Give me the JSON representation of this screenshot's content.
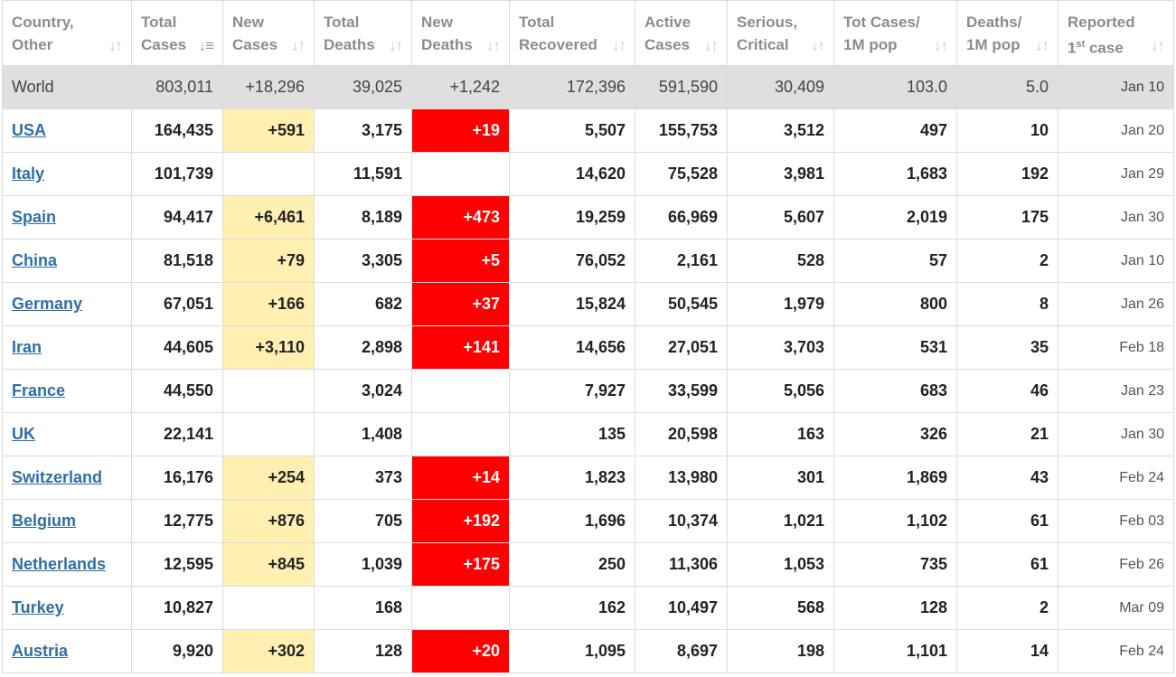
{
  "colors": {
    "new_cases_bg": "#fff0b2",
    "new_deaths_bg": "#ff0000",
    "link": "#2e6fa7",
    "world_row_bg": "#dfdfdf"
  },
  "sort_icon": "sort-arrows-icon",
  "headers": [
    {
      "l1": "Country,",
      "l2": "Other"
    },
    {
      "l1": "Total",
      "l2": "Cases"
    },
    {
      "l1": "New",
      "l2": "Cases"
    },
    {
      "l1": "Total",
      "l2": "Deaths"
    },
    {
      "l1": "New",
      "l2": "Deaths"
    },
    {
      "l1": "Total",
      "l2": "Recovered"
    },
    {
      "l1": "Active",
      "l2": "Cases"
    },
    {
      "l1": "Serious,",
      "l2": "Critical"
    },
    {
      "l1": "Tot Cases/",
      "l2": "1M pop"
    },
    {
      "l1": "Deaths/",
      "l2": "1M pop"
    },
    {
      "l1": "Reported",
      "l2a": "1",
      "l2sup": "st",
      "l2b": " case"
    }
  ],
  "world": {
    "country": "World",
    "total_cases": "803,011",
    "new_cases": "+18,296",
    "total_deaths": "39,025",
    "new_deaths": "+1,242",
    "total_recovered": "172,396",
    "active_cases": "591,590",
    "serious": "30,409",
    "cases_per_1m": "103.0",
    "deaths_per_1m": "5.0",
    "first_case": "Jan 10"
  },
  "rows": [
    {
      "country": "USA",
      "total_cases": "164,435",
      "new_cases": "+591",
      "total_deaths": "3,175",
      "new_deaths": "+19",
      "total_recovered": "5,507",
      "active_cases": "155,753",
      "serious": "3,512",
      "cases_per_1m": "497",
      "deaths_per_1m": "10",
      "first_case": "Jan 20"
    },
    {
      "country": "Italy",
      "total_cases": "101,739",
      "new_cases": "",
      "total_deaths": "11,591",
      "new_deaths": "",
      "total_recovered": "14,620",
      "active_cases": "75,528",
      "serious": "3,981",
      "cases_per_1m": "1,683",
      "deaths_per_1m": "192",
      "first_case": "Jan 29"
    },
    {
      "country": "Spain",
      "total_cases": "94,417",
      "new_cases": "+6,461",
      "total_deaths": "8,189",
      "new_deaths": "+473",
      "total_recovered": "19,259",
      "active_cases": "66,969",
      "serious": "5,607",
      "cases_per_1m": "2,019",
      "deaths_per_1m": "175",
      "first_case": "Jan 30"
    },
    {
      "country": "China",
      "total_cases": "81,518",
      "new_cases": "+79",
      "total_deaths": "3,305",
      "new_deaths": "+5",
      "total_recovered": "76,052",
      "active_cases": "2,161",
      "serious": "528",
      "cases_per_1m": "57",
      "deaths_per_1m": "2",
      "first_case": "Jan 10"
    },
    {
      "country": "Germany",
      "total_cases": "67,051",
      "new_cases": "+166",
      "total_deaths": "682",
      "new_deaths": "+37",
      "total_recovered": "15,824",
      "active_cases": "50,545",
      "serious": "1,979",
      "cases_per_1m": "800",
      "deaths_per_1m": "8",
      "first_case": "Jan 26"
    },
    {
      "country": "Iran",
      "total_cases": "44,605",
      "new_cases": "+3,110",
      "total_deaths": "2,898",
      "new_deaths": "+141",
      "total_recovered": "14,656",
      "active_cases": "27,051",
      "serious": "3,703",
      "cases_per_1m": "531",
      "deaths_per_1m": "35",
      "first_case": "Feb 18"
    },
    {
      "country": "France",
      "total_cases": "44,550",
      "new_cases": "",
      "total_deaths": "3,024",
      "new_deaths": "",
      "total_recovered": "7,927",
      "active_cases": "33,599",
      "serious": "5,056",
      "cases_per_1m": "683",
      "deaths_per_1m": "46",
      "first_case": "Jan 23"
    },
    {
      "country": "UK",
      "total_cases": "22,141",
      "new_cases": "",
      "total_deaths": "1,408",
      "new_deaths": "",
      "total_recovered": "135",
      "active_cases": "20,598",
      "serious": "163",
      "cases_per_1m": "326",
      "deaths_per_1m": "21",
      "first_case": "Jan 30"
    },
    {
      "country": "Switzerland",
      "total_cases": "16,176",
      "new_cases": "+254",
      "total_deaths": "373",
      "new_deaths": "+14",
      "total_recovered": "1,823",
      "active_cases": "13,980",
      "serious": "301",
      "cases_per_1m": "1,869",
      "deaths_per_1m": "43",
      "first_case": "Feb 24"
    },
    {
      "country": "Belgium",
      "total_cases": "12,775",
      "new_cases": "+876",
      "total_deaths": "705",
      "new_deaths": "+192",
      "total_recovered": "1,696",
      "active_cases": "10,374",
      "serious": "1,021",
      "cases_per_1m": "1,102",
      "deaths_per_1m": "61",
      "first_case": "Feb 03"
    },
    {
      "country": "Netherlands",
      "total_cases": "12,595",
      "new_cases": "+845",
      "total_deaths": "1,039",
      "new_deaths": "+175",
      "total_recovered": "250",
      "active_cases": "11,306",
      "serious": "1,053",
      "cases_per_1m": "735",
      "deaths_per_1m": "61",
      "first_case": "Feb 26"
    },
    {
      "country": "Turkey",
      "total_cases": "10,827",
      "new_cases": "",
      "total_deaths": "168",
      "new_deaths": "",
      "total_recovered": "162",
      "active_cases": "10,497",
      "serious": "568",
      "cases_per_1m": "128",
      "deaths_per_1m": "2",
      "first_case": "Mar 09"
    },
    {
      "country": "Austria",
      "total_cases": "9,920",
      "new_cases": "+302",
      "total_deaths": "128",
      "new_deaths": "+20",
      "total_recovered": "1,095",
      "active_cases": "8,697",
      "serious": "198",
      "cases_per_1m": "1,101",
      "deaths_per_1m": "14",
      "first_case": "Feb 24"
    }
  ]
}
